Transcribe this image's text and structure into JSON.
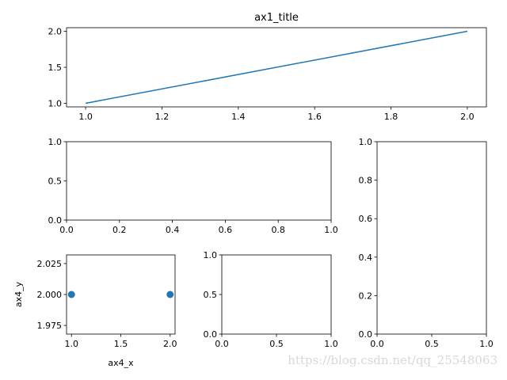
{
  "chart_data": [
    {
      "type": "line",
      "title": "ax1_title",
      "x": [
        1,
        2
      ],
      "series": [
        {
          "color": "#1f77b4",
          "values": [
            1,
            2
          ]
        }
      ],
      "xlim": [
        0.95,
        2.05
      ],
      "ylim": [
        0.95,
        2.05
      ],
      "xticks": [
        {
          "value": 1,
          "label": "1.0"
        },
        1.2,
        1.4,
        1.6,
        1.8,
        {
          "value": 2,
          "label": "2.0"
        }
      ],
      "yticks": [
        {
          "value": 1,
          "label": "1.0"
        },
        1.5,
        {
          "value": 2,
          "label": "2.0"
        }
      ]
    },
    {
      "type": "line",
      "xlim": [
        0,
        1
      ],
      "ylim": [
        0,
        1
      ],
      "xticks": [
        {
          "value": 0,
          "label": "0.0"
        },
        0.2,
        0.4,
        0.6,
        0.8,
        {
          "value": 1,
          "label": "1.0"
        }
      ],
      "yticks": [
        {
          "value": 0,
          "label": "0.0"
        },
        0.5,
        {
          "value": 1,
          "label": "1.0"
        }
      ]
    },
    {
      "type": "line",
      "xlim": [
        0,
        1
      ],
      "ylim": [
        0,
        1
      ],
      "xticks": [
        {
          "value": 0,
          "label": "0.0"
        },
        0.5,
        {
          "value": 1,
          "label": "1.0"
        }
      ],
      "yticks": [
        {
          "value": 0,
          "label": "0.0"
        },
        0.2,
        0.4,
        0.6,
        0.8,
        {
          "value": 1,
          "label": "1.0"
        }
      ]
    },
    {
      "type": "scatter",
      "xlabel": "ax4_x",
      "ylabel": "ax4_y",
      "x": [
        1,
        2
      ],
      "series": [
        {
          "color": "#1f77b4",
          "values": [
            2,
            2
          ]
        }
      ],
      "xlim": [
        0.95,
        2.05
      ],
      "ylim": [
        1.968,
        2.032
      ],
      "xticks": [
        {
          "value": 1,
          "label": "1.0"
        },
        1.5,
        {
          "value": 2,
          "label": "2.0"
        }
      ],
      "yticks": [
        1.975,
        {
          "value": 2,
          "label": "2.000"
        },
        2.025
      ]
    },
    {
      "type": "line",
      "xlim": [
        0,
        1
      ],
      "ylim": [
        0,
        1
      ],
      "xticks": [
        {
          "value": 0,
          "label": "0.0"
        },
        0.5,
        {
          "value": 1,
          "label": "1.0"
        }
      ],
      "yticks": [
        {
          "value": 0,
          "label": "0.0"
        },
        0.5,
        {
          "value": 1,
          "label": "1.0"
        }
      ]
    }
  ],
  "watermark": "https://blog.csdn.net/qq_25548063"
}
